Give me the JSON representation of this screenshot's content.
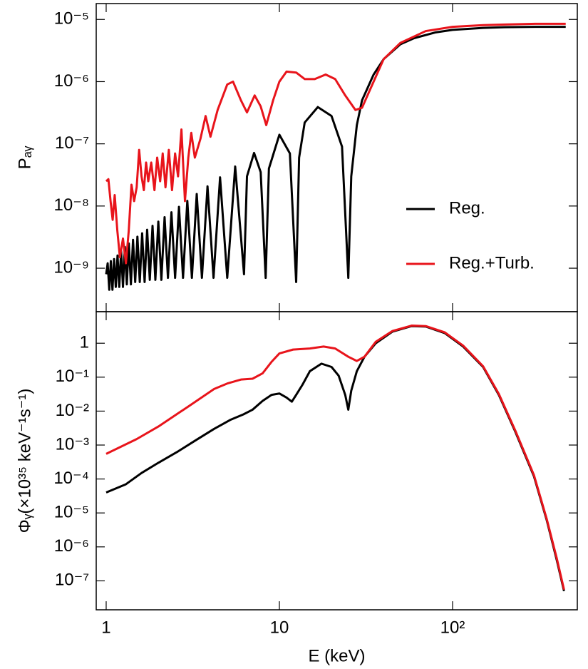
{
  "chart_data": [
    {
      "type": "line",
      "y_label": "Pₐᵧ",
      "x_scale": "log",
      "y_scale": "log",
      "xlim": [
        0.876,
        525
      ],
      "ylim": [
        2e-10,
        1.8e-05
      ],
      "yticks": [
        {
          "value": 1e-09,
          "label": "10⁻⁹"
        },
        {
          "value": 1e-08,
          "label": "10⁻⁸"
        },
        {
          "value": 1e-07,
          "label": "10⁻⁷"
        },
        {
          "value": 1e-06,
          "label": "10⁻⁶"
        },
        {
          "value": 1e-05,
          "label": "10⁻⁵"
        }
      ],
      "grid": false,
      "legend": "right",
      "series": [
        {
          "name": "Reg.",
          "color": "#000000",
          "x": [
            1,
            1.02,
            1.042,
            1.064,
            1.087,
            1.111,
            1.136,
            1.163,
            1.19,
            1.22,
            1.25,
            1.282,
            1.316,
            1.351,
            1.389,
            1.429,
            1.471,
            1.515,
            1.563,
            1.613,
            1.667,
            1.724,
            1.786,
            1.852,
            1.923,
            2.0,
            2.083,
            2.174,
            2.273,
            2.381,
            2.5,
            2.632,
            2.778,
            2.941,
            3.125,
            3.333,
            3.571,
            3.846,
            4.167,
            4.545,
            5,
            5.556,
            6.25,
            6.5,
            7.143,
            7.8,
            8.333,
            8.7,
            10,
            11.5,
            12.5,
            13,
            14,
            16.67,
            20,
            23,
            25,
            26,
            28,
            30,
            35,
            40,
            50,
            60,
            80,
            100,
            150,
            200,
            300,
            450
          ],
          "values": [
            8e-10,
            1.2e-09,
            4.5e-10,
            1.3e-09,
            4.5e-10,
            1.4e-09,
            5e-10,
            1.6e-09,
            5e-10,
            1.9e-09,
            5e-10,
            2.2e-09,
            5.5e-10,
            2.5e-09,
            5.5e-10,
            2.86e-09,
            6e-10,
            3.21e-09,
            6e-10,
            3.64e-09,
            6e-10,
            4.16e-09,
            6.5e-10,
            4.8e-09,
            6.5e-10,
            5.6e-09,
            6.5e-10,
            6.62e-09,
            7e-10,
            7.94e-09,
            7e-10,
            9.7e-09,
            7e-10,
            1.21e-08,
            7e-10,
            1.56e-08,
            7e-10,
            2.07e-08,
            7e-10,
            2.89e-08,
            7e-10,
            4.32e-08,
            8e-10,
            3e-08,
            7.14e-08,
            3.5e-08,
            7e-10,
            4e-08,
            1.4e-07,
            7e-08,
            6e-10,
            6e-08,
            2.2e-07,
            3.9e-07,
            2.8e-07,
            9e-08,
            7e-10,
            3e-08,
            2e-07,
            5e-07,
            1.3e-06,
            2.3e-06,
            4e-06,
            5e-06,
            6.2e-06,
            6.8e-06,
            7.3e-06,
            7.5e-06,
            7.6e-06,
            7.6e-06
          ]
        },
        {
          "name": "Reg.+Turb.",
          "color": "#e8141b",
          "x": [
            1,
            1.03,
            1.06,
            1.09,
            1.12,
            1.16,
            1.2,
            1.25,
            1.3,
            1.35,
            1.4,
            1.45,
            1.5,
            1.55,
            1.6,
            1.65,
            1.7,
            1.75,
            1.82,
            1.9,
            1.97,
            2.05,
            2.12,
            2.2,
            2.3,
            2.4,
            2.5,
            2.6,
            2.72,
            2.85,
            2.98,
            3.1,
            3.25,
            3.5,
            3.75,
            4.0,
            4.4,
            5.0,
            5.4,
            6.0,
            6.5,
            7.2,
            7.8,
            8.4,
            9.2,
            10,
            11,
            12.5,
            14,
            16,
            18.5,
            21,
            24,
            27.5,
            30,
            35,
            40,
            50,
            70,
            100,
            150,
            200,
            300,
            450
          ],
          "values": [
            2.5e-08,
            2.7e-08,
            1.2e-08,
            6e-09,
            1.5e-08,
            4e-09,
            1.5e-09,
            3e-09,
            1.2e-09,
            4e-09,
            2.2e-08,
            1.2e-08,
            2e-08,
            8e-08,
            3e-08,
            1.8e-08,
            5e-08,
            2.5e-08,
            5e-08,
            1.8e-08,
            6e-08,
            2.5e-08,
            7e-08,
            2e-08,
            8e-08,
            1.8e-08,
            7e-08,
            3e-08,
            1.7e-07,
            1.2e-08,
            6e-08,
            1.5e-07,
            6e-08,
            1.2e-07,
            2.8e-07,
            1.3e-07,
            3.5e-07,
            9e-07,
            1e-06,
            5e-07,
            3.2e-07,
            6e-07,
            4e-07,
            2e-07,
            5e-07,
            1e-06,
            1.45e-06,
            1.4e-06,
            1.1e-06,
            1.1e-06,
            1.3e-06,
            1.1e-06,
            6e-07,
            3.5e-07,
            3.8e-07,
            1e-06,
            2.3e-06,
            4.2e-06,
            6.5e-06,
            7.6e-06,
            8.1e-06,
            8.3e-06,
            8.5e-06,
            8.5e-06
          ]
        }
      ]
    },
    {
      "type": "line",
      "x_label": "E (keV)",
      "y_label": "Φᵧ(×10³⁵ keV⁻¹s⁻¹)",
      "x_scale": "log",
      "y_scale": "log",
      "xlim": [
        0.876,
        525
      ],
      "ylim": [
        1.4e-08,
        8.5
      ],
      "xticks": [
        1,
        10,
        {
          "value": 100,
          "label": "10²"
        }
      ],
      "yticks": [
        {
          "value": 1e-07,
          "label": "10⁻⁷"
        },
        {
          "value": 1e-06,
          "label": "10⁻⁶"
        },
        {
          "value": 1e-05,
          "label": "10⁻⁵"
        },
        {
          "value": 0.0001,
          "label": "10⁻⁴"
        },
        {
          "value": 0.001,
          "label": "10⁻³"
        },
        {
          "value": 0.01,
          "label": "10⁻²"
        },
        {
          "value": 0.1,
          "label": "10⁻¹"
        },
        1
      ],
      "grid": false,
      "series": [
        {
          "color": "#000000",
          "x": [
            1,
            1.3,
            1.6,
            2,
            2.6,
            3.3,
            4.2,
            5.2,
            6.2,
            7,
            8,
            9,
            10,
            11,
            11.8,
            12.5,
            13.6,
            15,
            17.5,
            20,
            22,
            24,
            25,
            26,
            28,
            31,
            36,
            45,
            58,
            70,
            90,
            115,
            150,
            185,
            230,
            295,
            350,
            400,
            440
          ],
          "values": [
            4e-05,
            7e-05,
            0.00015,
            0.0003,
            0.00065,
            0.0014,
            0.003,
            0.0055,
            0.008,
            0.011,
            0.02,
            0.03,
            0.033,
            0.025,
            0.019,
            0.03,
            0.06,
            0.15,
            0.25,
            0.2,
            0.11,
            0.03,
            0.011,
            0.04,
            0.15,
            0.4,
            1,
            2.2,
            3.2,
            3.1,
            2.0,
            0.8,
            0.2,
            0.03,
            0.0025,
            0.00012,
            6e-06,
            4e-07,
            5e-08
          ]
        },
        {
          "color": "#e8141b",
          "x": [
            1,
            1.5,
            2,
            3,
            4.2,
            5,
            6,
            7,
            8,
            9,
            10,
            12,
            15,
            18,
            21,
            25,
            28,
            31,
            36,
            45,
            58,
            70,
            90,
            115,
            150,
            185,
            230,
            295,
            350,
            400,
            440
          ],
          "values": [
            0.00055,
            0.0015,
            0.0035,
            0.014,
            0.045,
            0.065,
            0.085,
            0.09,
            0.13,
            0.28,
            0.5,
            0.65,
            0.7,
            0.8,
            0.7,
            0.4,
            0.3,
            0.4,
            1.1,
            2.3,
            3.3,
            3.2,
            2.1,
            0.85,
            0.21,
            0.032,
            0.0027,
            0.00013,
            6.5e-06,
            4.5e-07,
            5.5e-08
          ]
        }
      ]
    }
  ]
}
